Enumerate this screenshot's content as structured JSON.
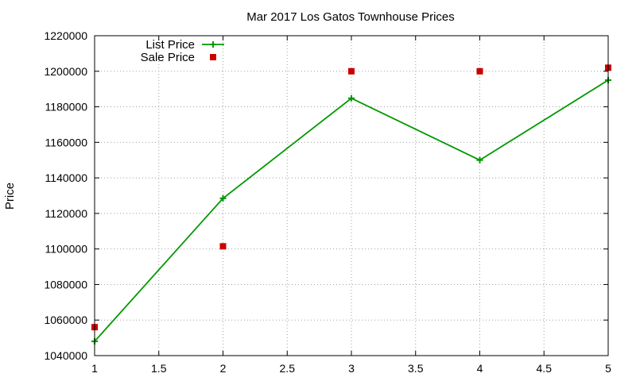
{
  "chart_data": {
    "type": "line",
    "title": "Mar 2017 Los Gatos Townhouse Prices",
    "xlabel": "",
    "ylabel": "Price",
    "xlim": [
      1,
      5
    ],
    "ylim": [
      1040000,
      1220000
    ],
    "x_ticks": [
      "1",
      "1.5",
      "2",
      "2.5",
      "3",
      "3.5",
      "4",
      "4.5",
      "5"
    ],
    "x_tick_values": [
      1,
      1.5,
      2,
      2.5,
      3,
      3.5,
      4,
      4.5,
      5
    ],
    "y_ticks": [
      "1040000",
      "1060000",
      "1080000",
      "1100000",
      "1120000",
      "1140000",
      "1160000",
      "1180000",
      "1200000",
      "1220000"
    ],
    "y_tick_values": [
      1040000,
      1060000,
      1080000,
      1100000,
      1120000,
      1140000,
      1160000,
      1180000,
      1200000,
      1220000
    ],
    "grid": true,
    "legend_position": "top-left",
    "series": [
      {
        "name": "List Price",
        "style": "linespoints",
        "marker": "plus",
        "color": "#009900",
        "x": [
          1,
          2,
          3,
          4,
          5
        ],
        "y": [
          1048000,
          1128500,
          1184800,
          1150000,
          1195000
        ]
      },
      {
        "name": "Sale Price",
        "style": "points",
        "marker": "square",
        "color": "#cc0000",
        "x": [
          1,
          2,
          3,
          4,
          5
        ],
        "y": [
          1056000,
          1101500,
          1200000,
          1200000,
          1202000
        ]
      }
    ]
  }
}
